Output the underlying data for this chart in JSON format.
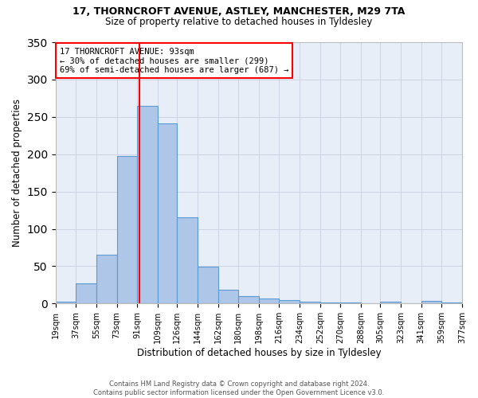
{
  "title1": "17, THORNCROFT AVENUE, ASTLEY, MANCHESTER, M29 7TA",
  "title2": "Size of property relative to detached houses in Tyldesley",
  "xlabel": "Distribution of detached houses by size in Tyldesley",
  "ylabel": "Number of detached properties",
  "footer": "Contains HM Land Registry data © Crown copyright and database right 2024.\nContains public sector information licensed under the Open Government Licence v3.0.",
  "bin_edges": [
    19,
    37,
    55,
    73,
    91,
    109,
    126,
    144,
    162,
    180,
    198,
    216,
    234,
    252,
    270,
    288,
    305,
    323,
    341,
    359,
    377
  ],
  "bar_heights": [
    2,
    27,
    65,
    198,
    265,
    241,
    115,
    49,
    18,
    10,
    7,
    5,
    2,
    1,
    1,
    0,
    3,
    0,
    4,
    1
  ],
  "bar_color": "#aec6e8",
  "bar_edge_color": "#5b9bd5",
  "property_size": 93,
  "annotation_line1": "17 THORNCROFT AVENUE: 93sqm",
  "annotation_line2": "← 30% of detached houses are smaller (299)",
  "annotation_line3": "69% of semi-detached houses are larger (687) →",
  "annotation_box_facecolor": "white",
  "annotation_box_edgecolor": "red",
  "vline_color": "red",
  "grid_color": "#cdd5e5",
  "bg_color": "#e8eef8",
  "ylim_max": 350,
  "yticks": [
    0,
    50,
    100,
    150,
    200,
    250,
    300,
    350
  ],
  "tick_labels": [
    "19sqm",
    "37sqm",
    "55sqm",
    "73sqm",
    "91sqm",
    "109sqm",
    "126sqm",
    "144sqm",
    "162sqm",
    "180sqm",
    "198sqm",
    "216sqm",
    "234sqm",
    "252sqm",
    "270sqm",
    "288sqm",
    "305sqm",
    "323sqm",
    "341sqm",
    "359sqm",
    "377sqm"
  ]
}
